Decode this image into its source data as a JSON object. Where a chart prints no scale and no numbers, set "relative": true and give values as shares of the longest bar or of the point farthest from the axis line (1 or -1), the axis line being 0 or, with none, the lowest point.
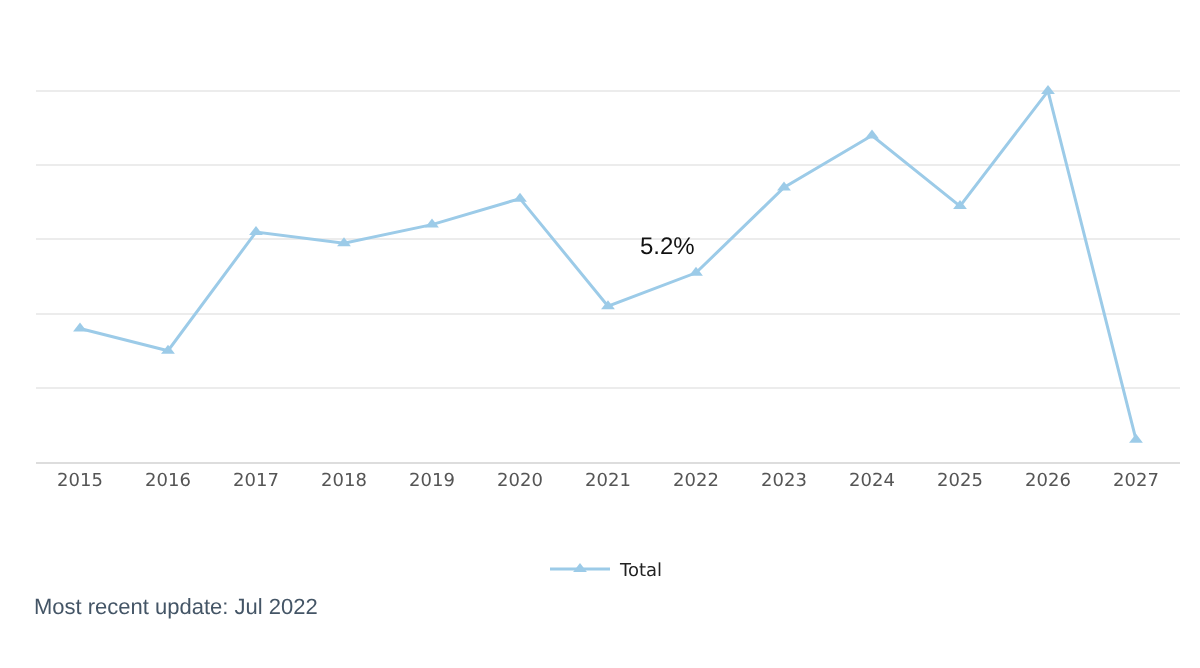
{
  "chart_data": {
    "type": "line",
    "relative": true,
    "categories": [
      "2015",
      "2016",
      "2017",
      "2018",
      "2019",
      "2020",
      "2021",
      "2022",
      "2023",
      "2024",
      "2025",
      "2026",
      "2027"
    ],
    "series": [
      {
        "name": "Total",
        "color": "#9ccbe8",
        "values": [
          0.36,
          0.3,
          0.62,
          0.59,
          0.64,
          0.71,
          0.42,
          0.51,
          0.74,
          0.88,
          0.69,
          1,
          0.06
        ]
      }
    ],
    "marker": "triangle",
    "grid": true,
    "legend": "bottom",
    "annotations": [
      {
        "text": "5.2%",
        "x": "2022",
        "y": 0.51
      },
      "Most recent update: Jul 2022"
    ]
  }
}
